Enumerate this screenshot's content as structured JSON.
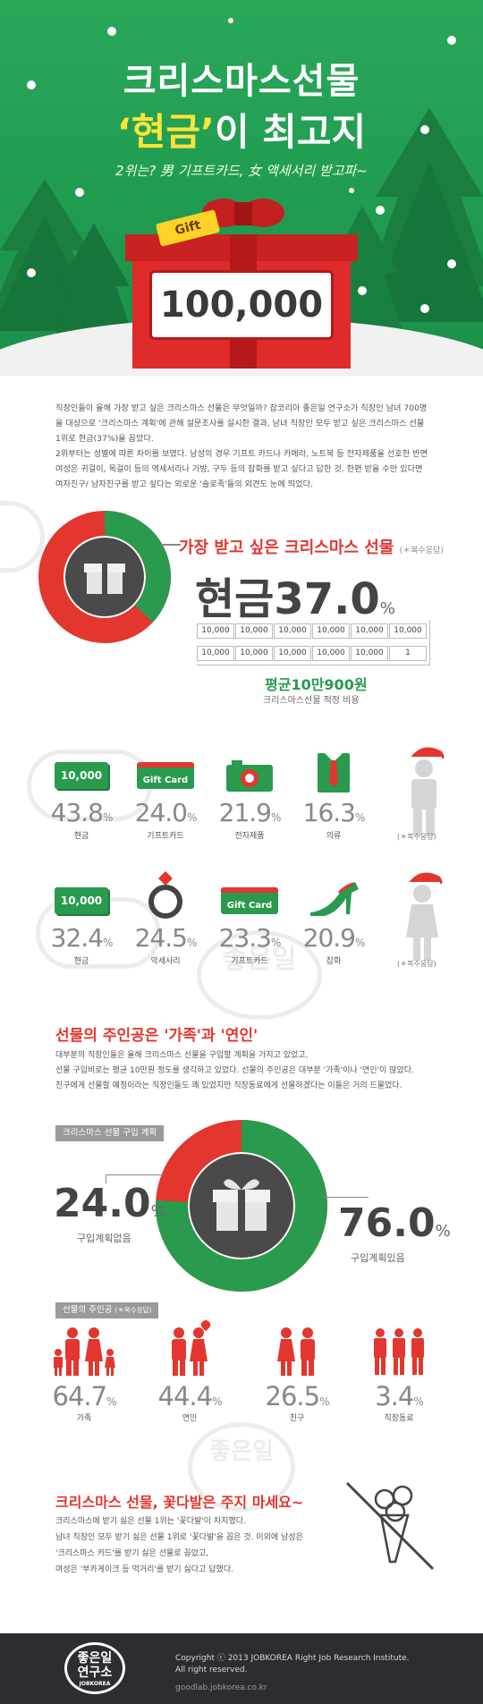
{
  "header": {
    "title_line1": "크리스마스선물",
    "title_highlight": "‘현금’",
    "title_rest": "이 최고지",
    "subtitle": "2위는? 男 기프트카드, 女 액세서리 받고파~",
    "gift_tag": "Gift",
    "gift_amount": "100,000"
  },
  "intro": {
    "p1": "직장인들이 올해 가장 받고 싶은 크리스마스 선물은 무엇일까? 잡코리아 좋은일 연구소가 직장인 남녀 700명을 대상으로 '크리스마스 계획'에 관해 설문조사를 실시한 결과, 남녀 직장인 모두 받고 싶은 크리스마스 선물 1위로 현금(37%)을 꼽았다.",
    "p2": "2위부터는 성별에 따른 차이를 보였다. 남성의 경우 기프트 카드나 카메라, 노트북 등 전자제품을 선호한 반면 여성은 귀걸이, 목걸이 등의 액세서리나 가방, 구두 등의 잡화를 받고 싶다고 답한 것. 한편 받을 수만 있다면 여자친구/ 남자친구를 받고 싶다는 외로운 '솔로족'들의 외견도 눈에 띄었다."
  },
  "section1": {
    "title": "가장 받고 싶은 크리스마스 선물",
    "note": "(＊복수응답)",
    "answer": "현금",
    "value": "37.0",
    "pct": "%",
    "cash_bills": [
      "10,000",
      "10,000",
      "10,000",
      "10,000",
      "10,000",
      "10,000",
      "10,000",
      "10,000",
      "10,000",
      "10,000",
      "10,000",
      "1"
    ],
    "avg": "평균10만900원",
    "avg_sub": "크리스마스선물 적정 비용",
    "share": 0.37,
    "colors": {
      "red": "#e2362f",
      "green": "#2a9a4e",
      "gray": "#4a4a4a"
    }
  },
  "male": {
    "note": "(＊복수응답)",
    "items": [
      {
        "icon": "cash-icon",
        "icon_text": "10,000",
        "value": "43.8",
        "unit": "%",
        "label": "현금"
      },
      {
        "icon": "gift-card-icon",
        "icon_text": "Gift Card",
        "value": "24.0",
        "unit": "%",
        "label": "기프트카드"
      },
      {
        "icon": "camera-icon",
        "icon_text": "",
        "value": "21.9",
        "unit": "%",
        "label": "전자제품"
      },
      {
        "icon": "shirt-tie-icon",
        "icon_text": "",
        "value": "16.3",
        "unit": "%",
        "label": "의류"
      }
    ]
  },
  "female": {
    "note": "(＊복수응답)",
    "items": [
      {
        "icon": "cash-icon",
        "icon_text": "10,000",
        "value": "32.4",
        "unit": "%",
        "label": "현금"
      },
      {
        "icon": "ring-icon",
        "icon_text": "",
        "value": "24.5",
        "unit": "%",
        "label": "악세사리"
      },
      {
        "icon": "gift-card-icon",
        "icon_text": "Gift Card",
        "value": "23.3",
        "unit": "%",
        "label": "기프트카드"
      },
      {
        "icon": "high-heel-icon",
        "icon_text": "",
        "value": "20.9",
        "unit": "%",
        "label": "잡화"
      }
    ]
  },
  "section2": {
    "title": "선물의 주인공은 '가족'과 '연인'",
    "text1": "대부분의 직장인들은 올해 크리스마스 선물을 구입할 계획을 가지고 있었고,",
    "text2": "선물 구입비로는 평균 10만원 정도를 생각하고 있었다. 선물의 주인공은 대부분 '가족'이나 '연인'이 많았다.",
    "text3": "친구에게 선물할 예정이라는 직장인들도 꽤 있었지만 직장동료에게 선물하겠다는 이들은 거의 드물었다.",
    "plan_tag": "크리스마스 선물 구입 계획",
    "no_plan_value": "24.0",
    "no_plan_label": "구입계획없음",
    "plan_value": "76.0",
    "plan_label": "구입계획있음",
    "pct": "%",
    "plan_share": 0.76,
    "recipient_tag": "선물의 주인공",
    "recipient_note": "(＊복수응답)",
    "recipients": [
      {
        "icon": "family-icon",
        "value": "64.7",
        "unit": "%",
        "label": "가족"
      },
      {
        "icon": "couple-icon",
        "value": "44.4",
        "unit": "%",
        "label": "연인"
      },
      {
        "icon": "friends-icon",
        "value": "26.5",
        "unit": "%",
        "label": "친구"
      },
      {
        "icon": "coworkers-icon",
        "value": "3.4",
        "unit": "%",
        "label": "직장동료"
      }
    ]
  },
  "section3": {
    "title": "크리스마스 선물, 꽃다발은 주지 마세요~",
    "lines": [
      "크리스마스에 받기 싫은 선물 1위는 '꽃다발'이 차지했다.",
      "남녀 직장인 모두 받기 싫은 선물 1위로 '꽃다발'을 꼽은 것. 이외에 남성은",
      "'크리스마스 카드'를 받기 싫은 선물로 꼽았고,",
      "여성은 '부카게이크 등 먹거리'를 받기 싫다고 답했다."
    ]
  },
  "watermark": {
    "text1": "좋은일",
    "text2": "연구소",
    "brand": "JOBKOREA"
  },
  "footer": {
    "logo_line1": "좋은일",
    "logo_line2": "연구소",
    "logo_brand": "JOBKOREA",
    "copyright1": "Copyright ⓒ 2013 JOBKOREA Right Job Research Institute.",
    "copyright2": "All right reserved.",
    "url": "goodlab.jobkorea.co.kr"
  }
}
